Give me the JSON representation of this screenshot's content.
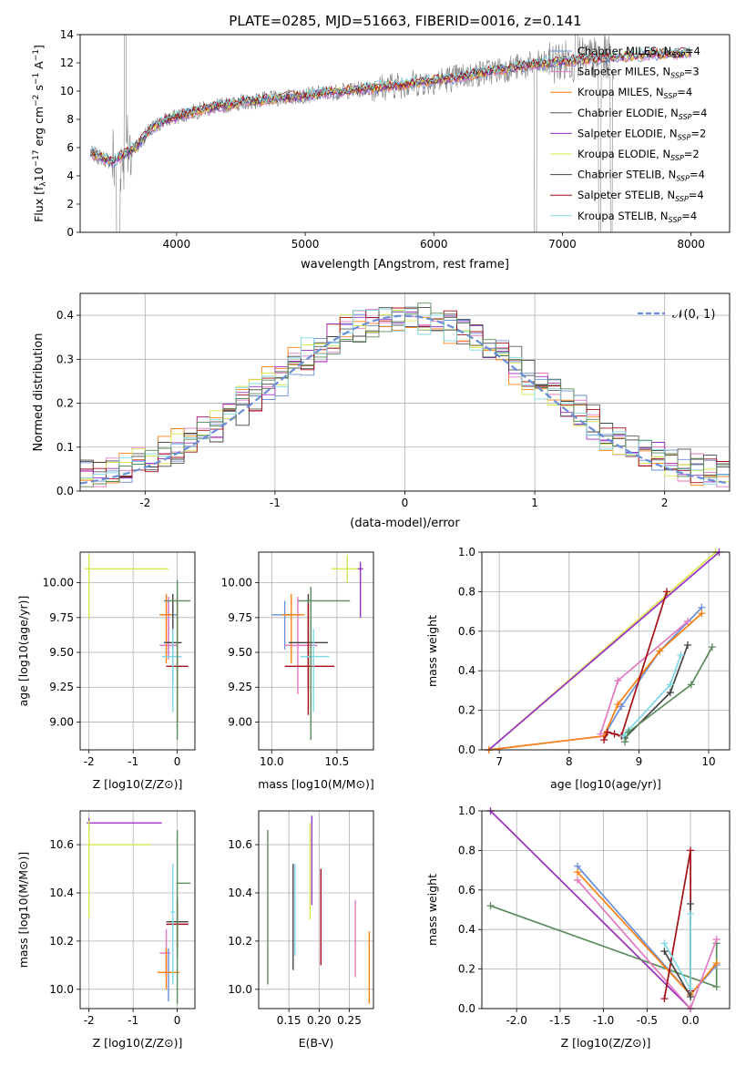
{
  "figure": {
    "title": "PLATE=0285, MJD=51663, FIBERID=0016, z=0.141",
    "colors": {
      "chabrier_miles": "#6a8fd8",
      "salpeter_miles": "#e377c2",
      "kroupa_miles": "#ff7f0e",
      "chabrier_elodie": "#595959",
      "salpeter_elodie": "#9b30c8",
      "kroupa_elodie": "#d6e84b",
      "chabrier_stelib": "#444444",
      "salpeter_stelib": "#a50f15",
      "kroupa_stelib": "#7fd8e8",
      "data_grey": "#808080",
      "gauss": "#6a8fd8",
      "green": "#5b8a5b"
    }
  },
  "chart_data": [
    {
      "id": "spectrum",
      "type": "line",
      "title": "PLATE=0285, MJD=51663, FIBERID=0016, z=0.141",
      "xlabel": "wavelength [Angstrom, rest frame]",
      "ylabel": "Flux [f_λ 10^-17 erg cm^-2 s^-1 A^-1]",
      "xlim": [
        3250,
        8300
      ],
      "ylim": [
        0,
        14
      ],
      "xticks": [
        4000,
        5000,
        6000,
        7000,
        8000
      ],
      "yticks": [
        0,
        2,
        4,
        6,
        8,
        10,
        12,
        14
      ],
      "grid": false,
      "legend_position": "top-right",
      "continuum": {
        "x": [
          3330,
          3500,
          3700,
          3800,
          3900,
          4000,
          4200,
          4500,
          4800,
          5000,
          5300,
          5600,
          5900,
          6200,
          6500,
          6800,
          7100,
          7400,
          7700,
          8000
        ],
        "y": [
          5.6,
          5.0,
          6.2,
          7.3,
          7.9,
          8.2,
          8.7,
          9.2,
          9.5,
          9.7,
          10.0,
          10.3,
          10.6,
          11.0,
          11.5,
          11.9,
          12.2,
          12.4,
          12.6,
          12.7
        ]
      },
      "series": [
        {
          "name": "Chabrier MILES, N_SSP=4",
          "color_key": "chabrier_miles"
        },
        {
          "name": "Salpeter MILES, N_SSP=3",
          "color_key": "salpeter_miles"
        },
        {
          "name": "Kroupa MILES, N_SSP=4",
          "color_key": "kroupa_miles"
        },
        {
          "name": "Chabrier ELODIE, N_SSP=4",
          "color_key": "chabrier_elodie"
        },
        {
          "name": "Salpeter ELODIE, N_SSP=2",
          "color_key": "salpeter_elodie"
        },
        {
          "name": "Kroupa ELODIE, N_SSP=2",
          "color_key": "kroupa_elodie"
        },
        {
          "name": "Chabrier STELIB, N_SSP=4",
          "color_key": "chabrier_stelib"
        },
        {
          "name": "Salpeter STELIB, N_SSP=4",
          "color_key": "salpeter_stelib"
        },
        {
          "name": "Kroupa STELIB, N_SSP=4",
          "color_key": "kroupa_stelib"
        }
      ]
    },
    {
      "id": "residuals",
      "type": "line",
      "xlabel": "(data-model)/error",
      "ylabel": "Normed distribution",
      "xlim": [
        -2.5,
        2.5
      ],
      "ylim": [
        0,
        0.45
      ],
      "xticks": [
        -2,
        -1,
        0,
        1,
        2
      ],
      "yticks": [
        0.0,
        0.1,
        0.2,
        0.3,
        0.4
      ],
      "grid": true,
      "legend_position": "top-right",
      "legend": [
        "𝒩(0, 1)"
      ],
      "gaussian": {
        "mean": 0,
        "sigma": 1
      }
    },
    {
      "id": "age_vs_Z",
      "type": "scatter",
      "xlabel": "Z [log10(Z/Z⊙)]",
      "ylabel": "age  [log10(age/yr)]",
      "xlim": [
        -2.2,
        0.4
      ],
      "ylim": [
        8.8,
        10.22
      ],
      "xticks": [
        -2,
        -1,
        0
      ],
      "yticks": [
        9.0,
        9.25,
        9.5,
        9.75,
        10.0
      ],
      "grid": true,
      "points": [
        {
          "c": "kroupa_elodie",
          "x": -2.0,
          "y": 10.1,
          "xerr": [
            0.1,
            1.8
          ],
          "yerr": [
            0.35,
            0.1
          ]
        },
        {
          "c": "chabrier_miles",
          "x": -0.2,
          "y": 9.77,
          "xerr": [
            0.2,
            0.2
          ],
          "yerr": [
            0.3,
            0.1
          ]
        },
        {
          "c": "salpeter_miles",
          "x": -0.2,
          "y": 9.55,
          "xerr": [
            0.2,
            0.2
          ],
          "yerr": [
            0.1,
            0.35
          ]
        },
        {
          "c": "kroupa_miles",
          "x": -0.25,
          "y": 9.77,
          "xerr": [
            0.15,
            0.15
          ],
          "yerr": [
            0.35,
            0.15
          ]
        },
        {
          "c": "chabrier_stelib",
          "x": -0.1,
          "y": 9.57,
          "xerr": [
            0.2,
            0.2
          ],
          "yerr": [
            0.28,
            0.35
          ]
        },
        {
          "c": "salpeter_stelib",
          "x": 0.0,
          "y": 9.4,
          "xerr": [
            0.25,
            0.25
          ],
          "yerr": [
            0.4,
            0.5
          ]
        },
        {
          "c": "kroupa_stelib",
          "x": -0.1,
          "y": 9.47,
          "xerr": [
            0.25,
            0.2
          ],
          "yerr": [
            0.4,
            0.2
          ]
        },
        {
          "c": "green",
          "x": 0.0,
          "y": 9.87,
          "xerr": [
            0.3,
            0.3
          ],
          "yerr": [
            1.0,
            0.15
          ]
        }
      ]
    },
    {
      "id": "age_vs_mass",
      "type": "scatter",
      "xlabel": "mass [log10(M/M⊙)]",
      "xlim": [
        9.9,
        10.78
      ],
      "ylim": [
        8.8,
        10.22
      ],
      "xticks": [
        10.0,
        10.5
      ],
      "yticks": [
        9.0,
        9.25,
        9.5,
        9.75,
        10.0
      ],
      "grid": true,
      "points": [
        {
          "c": "kroupa_elodie",
          "x": 10.58,
          "y": 10.1,
          "xerr": [
            0.12,
            0.12
          ],
          "yerr": [
            0.1,
            0.1
          ]
        },
        {
          "c": "salpeter_elodie",
          "x": 10.68,
          "y": 10.1,
          "xerr": [
            0.02,
            0.02
          ],
          "yerr": [
            0.35,
            0.05
          ]
        },
        {
          "c": "chabrier_miles",
          "x": 10.1,
          "y": 9.77,
          "xerr": [
            0.1,
            0.12
          ],
          "yerr": [
            0.25,
            0.1
          ]
        },
        {
          "c": "salpeter_miles",
          "x": 10.2,
          "y": 9.55,
          "xerr": [
            0.1,
            0.15
          ],
          "yerr": [
            0.35,
            0.35
          ]
        },
        {
          "c": "kroupa_miles",
          "x": 10.15,
          "y": 9.77,
          "xerr": [
            0.07,
            0.1
          ],
          "yerr": [
            0.35,
            0.15
          ]
        },
        {
          "c": "chabrier_stelib",
          "x": 10.28,
          "y": 9.57,
          "xerr": [
            0.15,
            0.15
          ],
          "yerr": [
            0.35,
            0.35
          ]
        },
        {
          "c": "salpeter_stelib",
          "x": 10.28,
          "y": 9.4,
          "xerr": [
            0.18,
            0.2
          ],
          "yerr": [
            0.35,
            0.45
          ]
        },
        {
          "c": "kroupa_stelib",
          "x": 10.32,
          "y": 9.47,
          "xerr": [
            0.1,
            0.12
          ],
          "yerr": [
            0.4,
            0.2
          ]
        },
        {
          "c": "green",
          "x": 10.3,
          "y": 9.87,
          "xerr": [
            0.1,
            0.3
          ],
          "yerr": [
            1.0,
            0.1
          ]
        }
      ]
    },
    {
      "id": "massweight_vs_age",
      "type": "line",
      "xlabel": "age  [log10(age/yr)]",
      "ylabel": "mass weight",
      "xlim": [
        6.75,
        10.3
      ],
      "ylim": [
        0,
        1
      ],
      "xticks": [
        7,
        8,
        9,
        10
      ],
      "yticks": [
        0.0,
        0.2,
        0.4,
        0.6,
        0.8,
        1.0
      ],
      "grid": true,
      "series": [
        {
          "c": "kroupa_elodie",
          "x": [
            6.85,
            10.1
          ],
          "y": [
            0.0,
            1.0
          ]
        },
        {
          "c": "salpeter_elodie",
          "x": [
            6.85,
            10.15
          ],
          "y": [
            0.0,
            1.0
          ]
        },
        {
          "c": "chabrier_miles",
          "x": [
            6.85,
            8.5,
            8.75,
            9.3,
            9.9
          ],
          "y": [
            0.0,
            0.07,
            0.22,
            0.5,
            0.72
          ]
        },
        {
          "c": "kroupa_miles",
          "x": [
            6.85,
            8.5,
            8.7,
            9.3,
            9.9
          ],
          "y": [
            0.0,
            0.07,
            0.23,
            0.5,
            0.69
          ]
        },
        {
          "c": "salpeter_miles",
          "x": [
            8.45,
            8.7,
            9.7
          ],
          "y": [
            0.08,
            0.35,
            0.65
          ]
        },
        {
          "c": "salpeter_stelib",
          "x": [
            8.5,
            8.55,
            8.65,
            8.75,
            9.4
          ],
          "y": [
            0.05,
            0.09,
            0.08,
            0.07,
            0.8
          ]
        },
        {
          "c": "chabrier_stelib",
          "x": [
            8.8,
            9.45,
            9.7
          ],
          "y": [
            0.06,
            0.29,
            0.53
          ]
        },
        {
          "c": "kroupa_stelib",
          "x": [
            8.78,
            8.85,
            9.45,
            9.6
          ],
          "y": [
            0.07,
            0.1,
            0.33,
            0.48
          ]
        },
        {
          "c": "green",
          "x": [
            8.8,
            8.85,
            9.75,
            10.05
          ],
          "y": [
            0.04,
            0.09,
            0.33,
            0.52
          ]
        }
      ]
    },
    {
      "id": "mass_vs_Z",
      "type": "scatter",
      "xlabel": "Z [log10(Z/Z⊙)]",
      "ylabel": "mass [log10(M/M⊙)]",
      "xlim": [
        -2.2,
        0.4
      ],
      "ylim": [
        9.92,
        10.74
      ],
      "xticks": [
        -2,
        -1,
        0
      ],
      "yticks": [
        10.0,
        10.2,
        10.4,
        10.6
      ],
      "grid": true,
      "points": [
        {
          "c": "salpeter_elodie",
          "x": -2.0,
          "y": 10.69,
          "xerr": [
            0.05,
            1.65
          ],
          "yerr": [
            0.02,
            0.02
          ]
        },
        {
          "c": "kroupa_elodie",
          "x": -2.0,
          "y": 10.6,
          "xerr": [
            0.05,
            1.4
          ],
          "yerr": [
            0.3,
            0.1
          ]
        },
        {
          "c": "salpeter_miles",
          "x": -0.25,
          "y": 10.15,
          "xerr": [
            0.15,
            0.1
          ],
          "yerr": [
            0.1,
            0.1
          ]
        },
        {
          "c": "chabrier_miles",
          "x": -0.2,
          "y": 10.07,
          "xerr": [
            0.1,
            0.1
          ],
          "yerr": [
            0.12,
            0.1
          ]
        },
        {
          "c": "kroupa_miles",
          "x": -0.25,
          "y": 10.07,
          "xerr": [
            0.2,
            0.3
          ],
          "yerr": [
            0.07,
            0.1
          ]
        },
        {
          "c": "chabrier_stelib",
          "x": 0.0,
          "y": 10.28,
          "xerr": [
            0.25,
            0.25
          ],
          "yerr": [
            0.15,
            0.1
          ]
        },
        {
          "c": "salpeter_stelib",
          "x": 0.0,
          "y": 10.27,
          "xerr": [
            0.25,
            0.25
          ],
          "yerr": [
            0.1,
            0.1
          ]
        },
        {
          "c": "kroupa_stelib",
          "x": -0.1,
          "y": 10.32,
          "xerr": [
            0.05,
            0.05
          ],
          "yerr": [
            0.3,
            0.2
          ]
        },
        {
          "c": "green",
          "x": 0.0,
          "y": 10.44,
          "xerr": [
            0.02,
            0.3
          ],
          "yerr": [
            0.5,
            0.22
          ]
        }
      ]
    },
    {
      "id": "mass_vs_ebv",
      "type": "scatter",
      "xlabel": "E(B-V)",
      "xlim": [
        0.1,
        0.29
      ],
      "ylim": [
        9.92,
        10.74
      ],
      "xticks": [
        0.15,
        0.2,
        0.25
      ],
      "yticks": [
        10.0,
        10.2,
        10.4,
        10.6
      ],
      "grid": true,
      "points": [
        {
          "c": "green",
          "x": 0.115,
          "y": 10.34,
          "xerr": [
            0,
            0
          ],
          "yerr": [
            0.32,
            0.32
          ]
        },
        {
          "c": "chabrier_stelib",
          "x": 0.157,
          "y": 10.29,
          "xerr": [
            0,
            0
          ],
          "yerr": [
            0.21,
            0.23
          ]
        },
        {
          "c": "kroupa_stelib",
          "x": 0.16,
          "y": 10.32,
          "xerr": [
            0,
            0
          ],
          "yerr": [
            0.18,
            0.2
          ]
        },
        {
          "c": "kroupa_elodie",
          "x": 0.185,
          "y": 10.49,
          "xerr": [
            0,
            0
          ],
          "yerr": [
            0.2,
            0.2
          ]
        },
        {
          "c": "salpeter_elodie",
          "x": 0.188,
          "y": 10.53,
          "xerr": [
            0,
            0
          ],
          "yerr": [
            0.18,
            0.19
          ]
        },
        {
          "c": "salpeter_stelib",
          "x": 0.203,
          "y": 10.3,
          "xerr": [
            0,
            0
          ],
          "yerr": [
            0.2,
            0.2
          ]
        },
        {
          "c": "salpeter_miles",
          "x": 0.26,
          "y": 10.21,
          "xerr": [
            0,
            0
          ],
          "yerr": [
            0.16,
            0.16
          ]
        },
        {
          "c": "kroupa_miles",
          "x": 0.283,
          "y": 10.09,
          "xerr": [
            0,
            0
          ],
          "yerr": [
            0.15,
            0.15
          ]
        }
      ]
    },
    {
      "id": "massweight_vs_Z",
      "type": "line",
      "xlabel": "Z [log10(Z/Z⊙)]",
      "ylabel": "mass weight",
      "xlim": [
        -2.4,
        0.45
      ],
      "ylim": [
        0,
        1
      ],
      "xticks": [
        -2.0,
        -1.5,
        -1.0,
        -0.5,
        0.0
      ],
      "yticks": [
        0.0,
        0.2,
        0.4,
        0.6,
        0.8,
        1.0
      ],
      "grid": true,
      "series": [
        {
          "c": "kroupa_elodie",
          "x": [
            -2.3,
            0.0
          ],
          "y": [
            1.0,
            0.0
          ]
        },
        {
          "c": "salpeter_elodie",
          "x": [
            -2.3,
            0.0
          ],
          "y": [
            1.0,
            0.0
          ]
        },
        {
          "c": "green",
          "x": [
            -2.3,
            0.3,
            0.3
          ],
          "y": [
            0.52,
            0.11,
            0.33
          ]
        },
        {
          "c": "chabrier_miles",
          "x": [
            -1.3,
            0.0,
            0.3
          ],
          "y": [
            0.72,
            0.07,
            0.22
          ]
        },
        {
          "c": "kroupa_miles",
          "x": [
            -1.3,
            0.0,
            0.3
          ],
          "y": [
            0.69,
            0.07,
            0.23
          ]
        },
        {
          "c": "salpeter_miles",
          "x": [
            -1.3,
            0.0,
            0.3
          ],
          "y": [
            0.65,
            0.0,
            0.35
          ]
        },
        {
          "c": "salpeter_stelib",
          "x": [
            -0.3,
            0.0,
            0.0
          ],
          "y": [
            0.05,
            0.8,
            0.09
          ]
        },
        {
          "c": "chabrier_stelib",
          "x": [
            -0.3,
            0.0,
            0.0
          ],
          "y": [
            0.29,
            0.06,
            0.53
          ]
        },
        {
          "c": "kroupa_stelib",
          "x": [
            -0.3,
            0.0,
            0.0
          ],
          "y": [
            0.33,
            0.1,
            0.48
          ]
        }
      ]
    }
  ]
}
